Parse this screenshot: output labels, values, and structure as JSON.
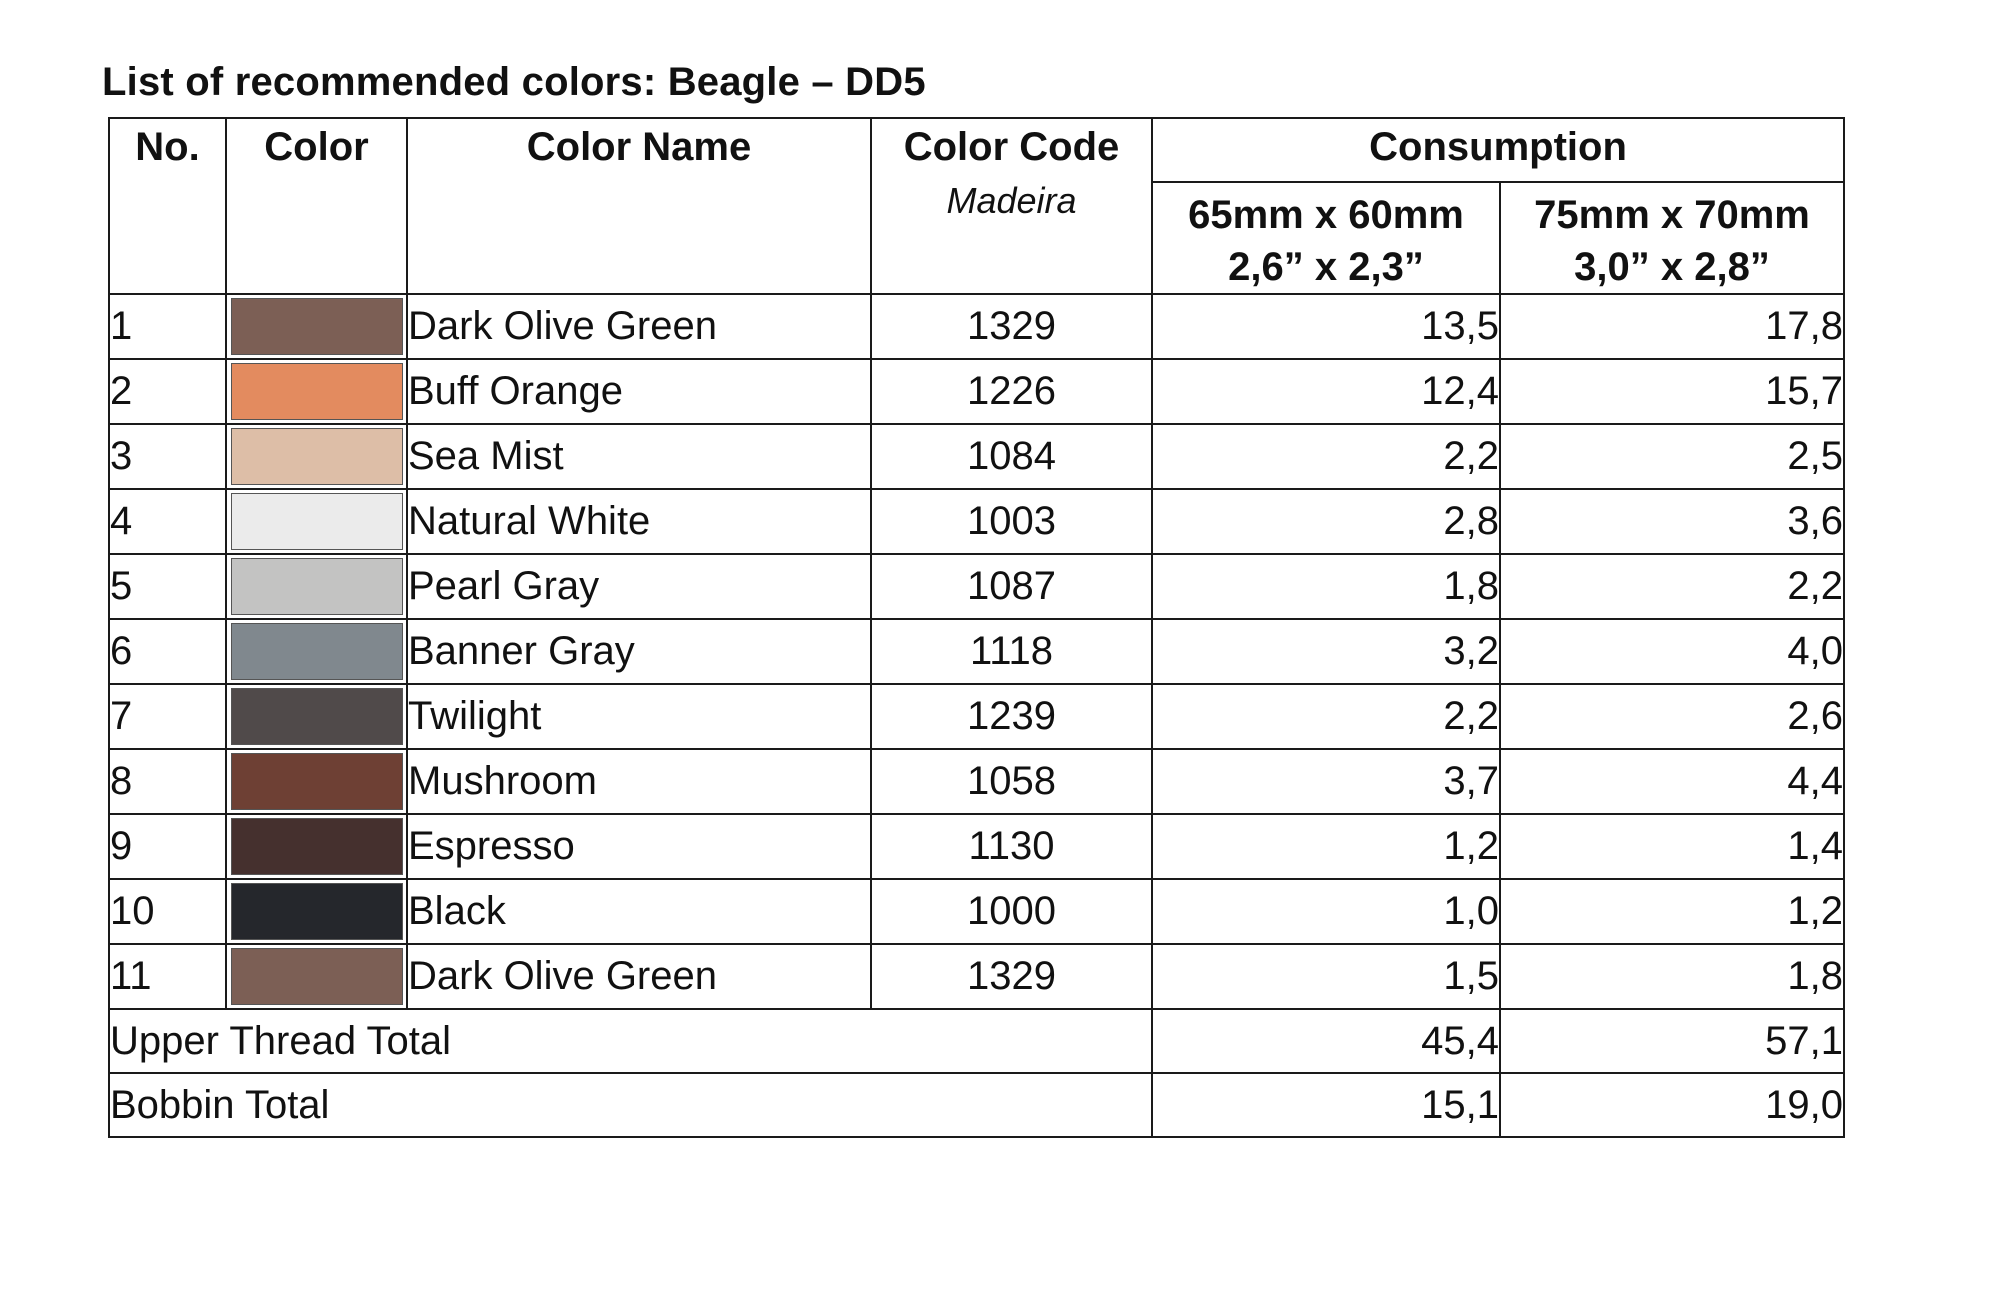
{
  "title": "List of recommended colors: Beagle – DD5",
  "headers": {
    "no": "No.",
    "color": "Color",
    "color_name": "Color Name",
    "color_code": "Color Code",
    "color_code_sub": "Madeira",
    "consumption": "Consumption",
    "size1_line1": "65mm x 60mm",
    "size1_line2": "2,6” x 2,3”",
    "size2_line1": "75mm x 70mm",
    "size2_line2": "3,0” x 2,8”"
  },
  "rows": [
    {
      "no": "1",
      "swatch": "#7c5f55",
      "name": "Dark Olive Green",
      "code": "1329",
      "c1": "13,5",
      "c2": "17,8"
    },
    {
      "no": "2",
      "swatch": "#e38b5f",
      "name": "Buff Orange",
      "code": "1226",
      "c1": "12,4",
      "c2": "15,7"
    },
    {
      "no": "3",
      "swatch": "#ddbea7",
      "name": "Sea Mist",
      "code": "1084",
      "c1": "2,2",
      "c2": "2,5"
    },
    {
      "no": "4",
      "swatch": "#ebebeb",
      "name": "Natural White",
      "code": "1003",
      "c1": "2,8",
      "c2": "3,6"
    },
    {
      "no": "5",
      "swatch": "#c3c3c2",
      "name": "Pearl Gray",
      "code": "1087",
      "c1": "1,8",
      "c2": "2,2"
    },
    {
      "no": "6",
      "swatch": "#80888e",
      "name": "Banner Gray",
      "code": "1118",
      "c1": "3,2",
      "c2": "4,0"
    },
    {
      "no": "7",
      "swatch": "#504a4a",
      "name": "Twilight",
      "code": "1239",
      "c1": "2,2",
      "c2": "2,6"
    },
    {
      "no": "8",
      "swatch": "#6e4034",
      "name": "Mushroom",
      "code": "1058",
      "c1": "3,7",
      "c2": "4,4"
    },
    {
      "no": "9",
      "swatch": "#45302e",
      "name": "Espresso",
      "code": "1130",
      "c1": "1,2",
      "c2": "1,4"
    },
    {
      "no": "10",
      "swatch": "#25272c",
      "name": "Black",
      "code": "1000",
      "c1": "1,0",
      "c2": "1,2"
    },
    {
      "no": "11",
      "swatch": "#7c5f55",
      "name": "Dark Olive Green",
      "code": "1329",
      "c1": "1,5",
      "c2": "1,8"
    }
  ],
  "totals": [
    {
      "label": "Upper Thread Total",
      "c1": "45,4",
      "c2": "57,1"
    },
    {
      "label": "Bobbin Total",
      "c1": "15,1",
      "c2": "19,0"
    }
  ]
}
